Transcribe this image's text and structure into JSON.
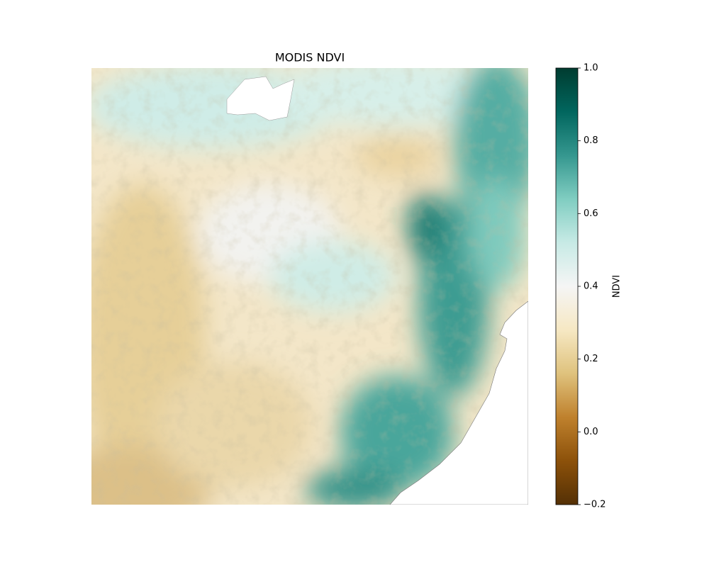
{
  "chart_data": {
    "type": "raster",
    "title": "MODIS NDVI",
    "colorbar": {
      "label": "NDVI",
      "lim": [
        -0.2,
        1.0
      ],
      "ticks": [
        {
          "value": -0.2,
          "label": "−0.2"
        },
        {
          "value": 0,
          "label": "0.0"
        },
        0.2,
        0.4,
        0.6,
        0.8,
        {
          "value": 1,
          "label": "1.0"
        }
      ],
      "colors": [
        "#543005",
        "#8c510a",
        "#bf812d",
        "#dfc27d",
        "#f6e8c3",
        "#f5f5f5",
        "#c7eae5",
        "#80cdc1",
        "#35978f",
        "#01665e",
        "#003c30"
      ]
    }
  }
}
